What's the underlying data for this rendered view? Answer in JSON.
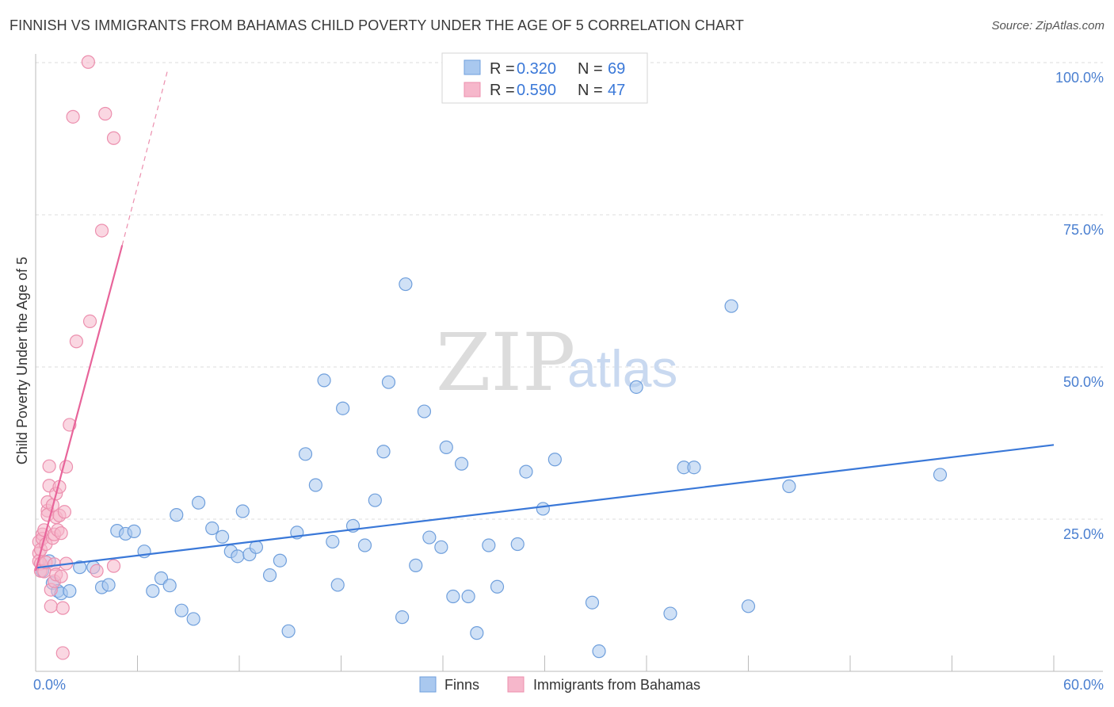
{
  "title": "FINNISH VS IMMIGRANTS FROM BAHAMAS CHILD POVERTY UNDER THE AGE OF 5 CORRELATION CHART",
  "source": "Source: ZipAtlas.com",
  "colors": {
    "blue_fill": "#a9c8ef",
    "blue_stroke": "#6f9fdc",
    "blue_line": "#3a78d8",
    "pink_fill": "#f6b7cb",
    "pink_stroke": "#ec8fae",
    "pink_line": "#e8649a",
    "grid": "#dddddd",
    "axis": "#bbbbbb",
    "tick_text": "#4a7fd0"
  },
  "watermark": {
    "zip": "ZIP",
    "atlas": "atlas"
  },
  "legend": {
    "rows": [
      {
        "r_label": "R =",
        "r_value": "0.320",
        "n_label": "N =",
        "n_value": "69"
      },
      {
        "r_label": "R =",
        "r_value": "0.590",
        "n_label": "N =",
        "n_value": "47"
      }
    ]
  },
  "bottom_legend": [
    "Finns",
    "Immigrants from Bahamas"
  ],
  "chart_data": {
    "type": "scatter",
    "title": "FINNISH VS IMMIGRANTS FROM BAHAMAS CHILD POVERTY UNDER THE AGE OF 5 CORRELATION CHART",
    "xlabel": "",
    "ylabel": "Child Poverty Under the Age of 5",
    "xlim": [
      0,
      60
    ],
    "ylim": [
      0,
      100
    ],
    "x_tick_labels": [
      {
        "value": 0,
        "label": "0.0%"
      },
      {
        "value": 60,
        "label": "60.0%"
      }
    ],
    "x_minor_ticks": [
      6,
      12,
      18,
      24,
      30,
      36,
      42,
      48,
      54
    ],
    "y_ticks": [
      {
        "value": 25,
        "label": "25.0%"
      },
      {
        "value": 50,
        "label": "50.0%"
      },
      {
        "value": 75,
        "label": "75.0%"
      },
      {
        "value": 100,
        "label": "100.0%"
      }
    ],
    "grid": true,
    "legend_position": "top-center",
    "series": [
      {
        "name": "Finns",
        "r": 0.32,
        "n": 69,
        "trend": {
          "x": [
            0,
            60
          ],
          "y": [
            17.0,
            37.2
          ],
          "dashed_to": null
        },
        "points": [
          [
            0.4,
            16.5
          ],
          [
            0.8,
            18.1
          ],
          [
            1.0,
            14.5
          ],
          [
            1.3,
            13.2
          ],
          [
            1.5,
            12.8
          ],
          [
            2.0,
            13.2
          ],
          [
            2.6,
            17.1
          ],
          [
            3.4,
            17.1
          ],
          [
            3.9,
            13.8
          ],
          [
            4.3,
            14.2
          ],
          [
            4.8,
            23.1
          ],
          [
            5.3,
            22.6
          ],
          [
            5.8,
            23.0
          ],
          [
            6.4,
            19.7
          ],
          [
            6.9,
            13.2
          ],
          [
            7.4,
            15.3
          ],
          [
            7.9,
            14.1
          ],
          [
            8.3,
            25.7
          ],
          [
            8.6,
            10.0
          ],
          [
            9.3,
            8.6
          ],
          [
            9.6,
            27.7
          ],
          [
            10.4,
            23.5
          ],
          [
            11.0,
            22.1
          ],
          [
            11.5,
            19.7
          ],
          [
            11.9,
            18.9
          ],
          [
            12.2,
            26.3
          ],
          [
            12.6,
            19.2
          ],
          [
            13.0,
            20.4
          ],
          [
            13.8,
            15.8
          ],
          [
            14.4,
            18.2
          ],
          [
            14.9,
            6.6
          ],
          [
            15.4,
            22.8
          ],
          [
            15.9,
            35.7
          ],
          [
            16.5,
            30.6
          ],
          [
            17.0,
            47.8
          ],
          [
            17.5,
            21.3
          ],
          [
            17.8,
            14.2
          ],
          [
            18.1,
            43.2
          ],
          [
            18.7,
            23.9
          ],
          [
            19.4,
            20.7
          ],
          [
            20.0,
            28.1
          ],
          [
            20.5,
            36.1
          ],
          [
            20.8,
            47.5
          ],
          [
            21.6,
            8.9
          ],
          [
            21.8,
            63.6
          ],
          [
            22.4,
            17.4
          ],
          [
            22.9,
            42.7
          ],
          [
            23.2,
            22.0
          ],
          [
            23.9,
            20.4
          ],
          [
            24.2,
            36.8
          ],
          [
            24.6,
            12.3
          ],
          [
            25.1,
            34.1
          ],
          [
            25.5,
            12.3
          ],
          [
            26.0,
            6.3
          ],
          [
            26.7,
            20.7
          ],
          [
            27.2,
            13.9
          ],
          [
            28.4,
            20.9
          ],
          [
            28.9,
            32.8
          ],
          [
            29.9,
            26.7
          ],
          [
            30.6,
            34.8
          ],
          [
            32.8,
            11.3
          ],
          [
            33.2,
            3.3
          ],
          [
            35.4,
            46.7
          ],
          [
            37.4,
            9.5
          ],
          [
            38.2,
            33.5
          ],
          [
            38.8,
            33.5
          ],
          [
            41.0,
            60.0
          ],
          [
            42.0,
            10.7
          ],
          [
            44.4,
            30.4
          ],
          [
            53.3,
            32.3
          ]
        ]
      },
      {
        "name": "Immigrants from Bahamas",
        "r": 0.59,
        "n": 47,
        "trend": {
          "x": [
            0,
            5.1
          ],
          "y": [
            16.5,
            70.0
          ],
          "dashed_x": [
            5.1,
            7.8
          ],
          "dashed_y": [
            70.0,
            99.0
          ]
        },
        "points": [
          [
            0.2,
            21.3
          ],
          [
            0.2,
            19.4
          ],
          [
            0.2,
            18.1
          ],
          [
            0.3,
            17.7
          ],
          [
            0.3,
            16.5
          ],
          [
            0.3,
            20.0
          ],
          [
            0.4,
            22.5
          ],
          [
            0.4,
            21.8
          ],
          [
            0.5,
            16.4
          ],
          [
            0.5,
            23.2
          ],
          [
            0.6,
            17.9
          ],
          [
            0.6,
            20.9
          ],
          [
            0.7,
            26.4
          ],
          [
            0.7,
            25.7
          ],
          [
            0.7,
            27.8
          ],
          [
            0.8,
            33.7
          ],
          [
            0.8,
            30.5
          ],
          [
            0.9,
            13.4
          ],
          [
            0.9,
            10.7
          ],
          [
            1.0,
            27.3
          ],
          [
            1.0,
            21.9
          ],
          [
            1.1,
            14.8
          ],
          [
            1.1,
            22.5
          ],
          [
            1.1,
            17.6
          ],
          [
            1.2,
            29.2
          ],
          [
            1.2,
            25.3
          ],
          [
            1.2,
            15.9
          ],
          [
            1.3,
            23.2
          ],
          [
            1.4,
            25.6
          ],
          [
            1.4,
            30.3
          ],
          [
            1.5,
            15.6
          ],
          [
            1.5,
            22.7
          ],
          [
            1.6,
            10.4
          ],
          [
            1.6,
            3.0
          ],
          [
            1.7,
            26.2
          ],
          [
            1.8,
            17.7
          ],
          [
            1.8,
            33.6
          ],
          [
            2.0,
            40.5
          ],
          [
            2.2,
            91.1
          ],
          [
            2.4,
            54.2
          ],
          [
            3.1,
            100.1
          ],
          [
            3.2,
            57.5
          ],
          [
            3.6,
            16.5
          ],
          [
            3.9,
            72.4
          ],
          [
            4.1,
            91.6
          ],
          [
            4.6,
            87.6
          ],
          [
            4.6,
            17.3
          ]
        ]
      }
    ]
  }
}
